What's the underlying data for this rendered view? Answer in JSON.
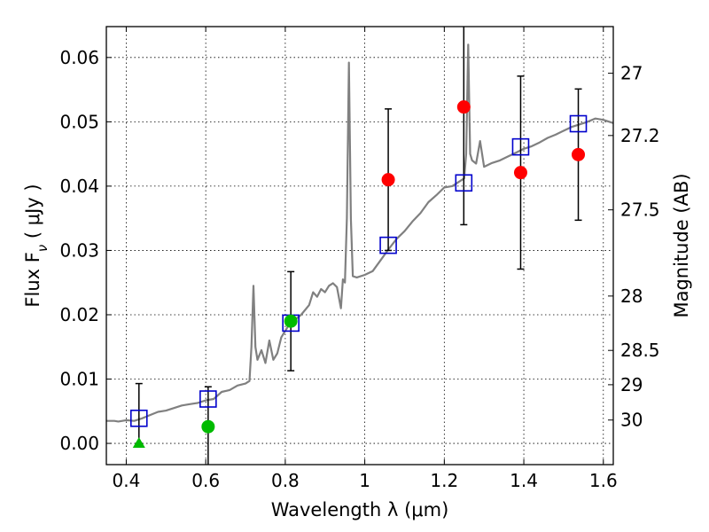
{
  "chart_data": {
    "type": "scatter",
    "xlabel": "Wavelength  λ (μm)",
    "ylabel_main": "Flux  F",
    "ylabel_sub": "ν",
    "ylabel_units": "  ( μJy )",
    "y2label": "Magnitude (AB)",
    "xlim": [
      0.35,
      1.625
    ],
    "ylim": [
      -0.0033,
      0.0648
    ],
    "grid": true,
    "x_ticks": [
      0.4,
      0.6,
      0.8,
      1.0,
      1.2,
      1.4,
      1.6
    ],
    "x_tick_labels": [
      "0.4",
      "0.6",
      "0.8",
      "1",
      "1.2",
      "1.4",
      "1.6"
    ],
    "y_ticks": [
      0.0,
      0.01,
      0.02,
      0.03,
      0.04,
      0.05,
      0.06
    ],
    "y_tick_labels": [
      "0.00",
      "0.01",
      "0.02",
      "0.03",
      "0.04",
      "0.05",
      "0.06"
    ],
    "mag_ticks": [
      27,
      27.2,
      27.5,
      28,
      28.5,
      29,
      30
    ],
    "mag_tick_labels": [
      "27",
      "27.2",
      "27.5",
      "28",
      "28.5",
      "29",
      "30"
    ],
    "model_spectrum": {
      "color": "#808080",
      "points": [
        [
          0.35,
          0.0035
        ],
        [
          0.37,
          0.0035
        ],
        [
          0.38,
          0.0034
        ],
        [
          0.4,
          0.0036
        ],
        [
          0.42,
          0.0035
        ],
        [
          0.44,
          0.0039
        ],
        [
          0.46,
          0.0044
        ],
        [
          0.48,
          0.0049
        ],
        [
          0.5,
          0.0051
        ],
        [
          0.52,
          0.0055
        ],
        [
          0.54,
          0.0059
        ],
        [
          0.56,
          0.0061
        ],
        [
          0.58,
          0.0063
        ],
        [
          0.6,
          0.0067
        ],
        [
          0.62,
          0.0069
        ],
        [
          0.64,
          0.008
        ],
        [
          0.66,
          0.0083
        ],
        [
          0.68,
          0.009
        ],
        [
          0.7,
          0.0093
        ],
        [
          0.71,
          0.0097
        ],
        [
          0.715,
          0.015
        ],
        [
          0.72,
          0.0245
        ],
        [
          0.725,
          0.015
        ],
        [
          0.73,
          0.013
        ],
        [
          0.74,
          0.0145
        ],
        [
          0.75,
          0.0125
        ],
        [
          0.76,
          0.016
        ],
        [
          0.77,
          0.013
        ],
        [
          0.78,
          0.014
        ],
        [
          0.79,
          0.0165
        ],
        [
          0.8,
          0.0175
        ],
        [
          0.81,
          0.0185
        ],
        [
          0.82,
          0.019
        ],
        [
          0.84,
          0.02
        ],
        [
          0.86,
          0.0215
        ],
        [
          0.87,
          0.0235
        ],
        [
          0.88,
          0.0228
        ],
        [
          0.89,
          0.024
        ],
        [
          0.9,
          0.0235
        ],
        [
          0.91,
          0.0245
        ],
        [
          0.92,
          0.0249
        ],
        [
          0.93,
          0.0243
        ],
        [
          0.94,
          0.021
        ],
        [
          0.945,
          0.0255
        ],
        [
          0.95,
          0.025
        ],
        [
          0.955,
          0.035
        ],
        [
          0.96,
          0.0592
        ],
        [
          0.965,
          0.035
        ],
        [
          0.97,
          0.026
        ],
        [
          0.98,
          0.0258
        ],
        [
          1.0,
          0.0262
        ],
        [
          1.02,
          0.0268
        ],
        [
          1.04,
          0.0285
        ],
        [
          1.06,
          0.0302
        ],
        [
          1.08,
          0.0318
        ],
        [
          1.1,
          0.033
        ],
        [
          1.12,
          0.0345
        ],
        [
          1.14,
          0.0358
        ],
        [
          1.16,
          0.0375
        ],
        [
          1.18,
          0.0386
        ],
        [
          1.2,
          0.0398
        ],
        [
          1.22,
          0.04
        ],
        [
          1.24,
          0.0408
        ],
        [
          1.25,
          0.0412
        ],
        [
          1.255,
          0.045
        ],
        [
          1.26,
          0.062
        ],
        [
          1.265,
          0.045
        ],
        [
          1.27,
          0.044
        ],
        [
          1.28,
          0.0435
        ],
        [
          1.29,
          0.047
        ],
        [
          1.3,
          0.043
        ],
        [
          1.32,
          0.0436
        ],
        [
          1.34,
          0.044
        ],
        [
          1.36,
          0.0446
        ],
        [
          1.38,
          0.0452
        ],
        [
          1.4,
          0.0458
        ],
        [
          1.42,
          0.0462
        ],
        [
          1.44,
          0.0468
        ],
        [
          1.46,
          0.0475
        ],
        [
          1.48,
          0.048
        ],
        [
          1.5,
          0.0486
        ],
        [
          1.52,
          0.0492
        ],
        [
          1.54,
          0.0496
        ],
        [
          1.56,
          0.05
        ],
        [
          1.58,
          0.0505
        ],
        [
          1.6,
          0.0503
        ],
        [
          1.625,
          0.0498
        ]
      ]
    },
    "series": [
      {
        "marker": "square",
        "color": "#0000cc",
        "points": [
          {
            "x": 0.432,
            "y": 0.0039
          },
          {
            "x": 0.606,
            "y": 0.0069
          },
          {
            "x": 0.814,
            "y": 0.0187
          },
          {
            "x": 1.059,
            "y": 0.0308
          },
          {
            "x": 1.249,
            "y": 0.0405
          },
          {
            "x": 1.392,
            "y": 0.0461
          },
          {
            "x": 1.537,
            "y": 0.0497
          }
        ]
      },
      {
        "marker": "circle",
        "color": "#ff0000",
        "points": [
          {
            "x": 1.059,
            "y": 0.041,
            "yerr_low": 0.011,
            "yerr_high": 0.011
          },
          {
            "x": 1.249,
            "y": 0.0523,
            "yerr_low": 0.0183,
            "yerr_high": 0.0183
          },
          {
            "x": 1.392,
            "y": 0.0421,
            "yerr_low": 0.015,
            "yerr_high": 0.015
          },
          {
            "x": 1.537,
            "y": 0.0449,
            "yerr_low": 0.0102,
            "yerr_high": 0.0102
          }
        ]
      },
      {
        "marker": "circle",
        "color": "#00bb00",
        "points": [
          {
            "x": 0.606,
            "y": 0.0026,
            "yerr_low": 0.0062,
            "yerr_high": 0.0062
          },
          {
            "x": 0.814,
            "y": 0.019,
            "yerr_low": 0.0077,
            "yerr_high": 0.0077
          }
        ]
      },
      {
        "marker": "triangle",
        "color": "#00bb00",
        "points": [
          {
            "x": 0.432,
            "y": 0.0,
            "yerr_low": 0.0,
            "yerr_high": 0.0093
          }
        ]
      }
    ]
  }
}
